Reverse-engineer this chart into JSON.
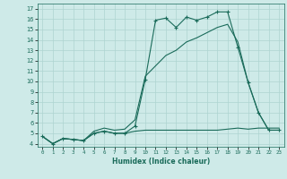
{
  "xlabel": "Humidex (Indice chaleur)",
  "background_color": "#ceeae8",
  "grid_color": "#aed4d0",
  "line_color": "#1a6b5a",
  "xlim": [
    -0.5,
    23.5
  ],
  "ylim": [
    3.7,
    17.5
  ],
  "xticks": [
    0,
    1,
    2,
    3,
    4,
    5,
    6,
    7,
    8,
    9,
    10,
    11,
    12,
    13,
    14,
    15,
    16,
    17,
    18,
    19,
    20,
    21,
    22,
    23
  ],
  "yticks": [
    4,
    5,
    6,
    7,
    8,
    9,
    10,
    11,
    12,
    13,
    14,
    15,
    16,
    17
  ],
  "series1_x": [
    0,
    1,
    2,
    3,
    4,
    5,
    6,
    7,
    8,
    9,
    10,
    11,
    12,
    13,
    14,
    15,
    16,
    17,
    18,
    19,
    20,
    21,
    22,
    23
  ],
  "series1_y": [
    4.7,
    4.0,
    4.5,
    4.4,
    4.3,
    5.0,
    5.2,
    5.0,
    5.0,
    5.7,
    10.2,
    15.9,
    16.1,
    15.2,
    16.2,
    15.9,
    16.2,
    16.7,
    16.7,
    13.3,
    9.9,
    7.0,
    5.3,
    5.3
  ],
  "series2_x": [
    0,
    1,
    2,
    3,
    4,
    5,
    6,
    7,
    8,
    9,
    10,
    11,
    12,
    13,
    14,
    15,
    16,
    17,
    18,
    19,
    20,
    21,
    22,
    23
  ],
  "series2_y": [
    4.7,
    4.0,
    4.5,
    4.4,
    4.3,
    5.2,
    5.5,
    5.3,
    5.4,
    6.3,
    10.5,
    11.5,
    12.5,
    13.0,
    13.8,
    14.2,
    14.7,
    15.2,
    15.5,
    13.8,
    9.9,
    7.0,
    5.3,
    5.3
  ],
  "series3_x": [
    0,
    1,
    2,
    3,
    4,
    5,
    6,
    7,
    8,
    9,
    10,
    11,
    12,
    13,
    14,
    15,
    16,
    17,
    18,
    19,
    20,
    21,
    22,
    23
  ],
  "series3_y": [
    4.7,
    4.0,
    4.5,
    4.4,
    4.3,
    5.0,
    5.2,
    5.0,
    5.0,
    5.2,
    5.3,
    5.3,
    5.3,
    5.3,
    5.3,
    5.3,
    5.3,
    5.3,
    5.4,
    5.5,
    5.4,
    5.5,
    5.5,
    5.5
  ]
}
